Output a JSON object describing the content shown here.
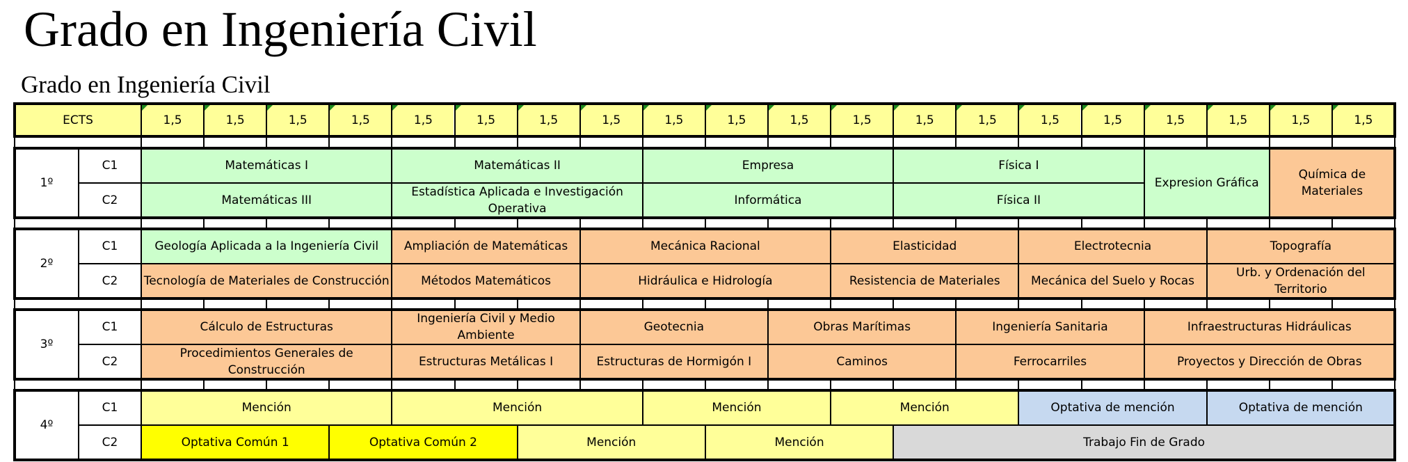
{
  "page_title": "Grado en Ingeniería Civil",
  "table_title": "Grado en Ingeniería Civil",
  "colors": {
    "header": "#ffff99",
    "basic": "#ccffcc",
    "specific": "#fcc896",
    "mention": "#ffff99",
    "common_optional": "#ffff00",
    "mention_optional": "#c6d9f0",
    "final_project": "#d9d9d9"
  },
  "header_label": "ECTS",
  "ects": [
    "1,5",
    "1,5",
    "1,5",
    "1,5",
    "1,5",
    "1,5",
    "1,5",
    "1,5",
    "1,5",
    "1,5",
    "1,5",
    "1,5",
    "1,5",
    "1,5",
    "1,5",
    "1,5",
    "1,5",
    "1,5",
    "1,5",
    "1,5"
  ],
  "years": [
    {
      "label": "1º",
      "rows": [
        {
          "term": "C1",
          "courses": [
            {
              "name": "Matemáticas I",
              "span": 4,
              "type": "basic"
            },
            {
              "name": "Matemáticas II",
              "span": 4,
              "type": "basic"
            },
            {
              "name": "Empresa",
              "span": 4,
              "type": "basic"
            },
            {
              "name": "Física I",
              "span": 4,
              "type": "basic"
            },
            {
              "name": "Expresion Gráfica",
              "span": 2,
              "type": "basic",
              "rowspan": 2
            },
            {
              "name": "Química de Materiales",
              "span": 2,
              "type": "specific",
              "rowspan": 2
            }
          ]
        },
        {
          "term": "C2",
          "courses": [
            {
              "name": "Matemáticas III",
              "span": 4,
              "type": "basic"
            },
            {
              "name": "Estadística Aplicada e Investigación Operativa",
              "span": 4,
              "type": "basic"
            },
            {
              "name": "Informática",
              "span": 4,
              "type": "basic"
            },
            {
              "name": "Física II",
              "span": 4,
              "type": "basic"
            }
          ]
        }
      ]
    },
    {
      "label": "2º",
      "rows": [
        {
          "term": "C1",
          "courses": [
            {
              "name": "Geología Aplicada a la Ingeniería Civil",
              "span": 4,
              "type": "basic"
            },
            {
              "name": "Ampliación de Matemáticas",
              "span": 3,
              "type": "specific"
            },
            {
              "name": "Mecánica Racional",
              "span": 4,
              "type": "specific"
            },
            {
              "name": "Elasticidad",
              "span": 3,
              "type": "specific"
            },
            {
              "name": "Electrotecnia",
              "span": 3,
              "type": "specific"
            },
            {
              "name": "Topografía",
              "span": 3,
              "type": "specific"
            }
          ]
        },
        {
          "term": "C2",
          "courses": [
            {
              "name": "Tecnología de Materiales de Construcción",
              "span": 4,
              "type": "specific"
            },
            {
              "name": "Métodos Matemáticos",
              "span": 3,
              "type": "specific"
            },
            {
              "name": "Hidráulica e Hidrología",
              "span": 4,
              "type": "specific"
            },
            {
              "name": "Resistencia de Materiales",
              "span": 3,
              "type": "specific"
            },
            {
              "name": "Mecánica del Suelo y Rocas",
              "span": 3,
              "type": "specific"
            },
            {
              "name": "Urb. y Ordenación del Territorio",
              "span": 3,
              "type": "specific"
            }
          ]
        }
      ]
    },
    {
      "label": "3º",
      "rows": [
        {
          "term": "C1",
          "courses": [
            {
              "name": "Cálculo de Estructuras",
              "span": 4,
              "type": "specific"
            },
            {
              "name": "Ingeniería Civil y Medio Ambiente",
              "span": 3,
              "type": "specific"
            },
            {
              "name": "Geotecnia",
              "span": 3,
              "type": "specific"
            },
            {
              "name": "Obras Marítimas",
              "span": 3,
              "type": "specific"
            },
            {
              "name": "Ingeniería Sanitaria",
              "span": 3,
              "type": "specific"
            },
            {
              "name": "Infraestructuras Hidráulicas",
              "span": 4,
              "type": "specific"
            }
          ]
        },
        {
          "term": "C2",
          "courses": [
            {
              "name": "Procedimientos Generales de Construcción",
              "span": 4,
              "type": "specific"
            },
            {
              "name": "Estructuras Metálicas I",
              "span": 3,
              "type": "specific"
            },
            {
              "name": "Estructuras de Hormigón I",
              "span": 3,
              "type": "specific"
            },
            {
              "name": "Caminos",
              "span": 3,
              "type": "specific"
            },
            {
              "name": "Ferrocarriles",
              "span": 3,
              "type": "specific"
            },
            {
              "name": "Proyectos y Dirección de Obras",
              "span": 4,
              "type": "specific"
            }
          ]
        }
      ]
    },
    {
      "label": "4º",
      "rows": [
        {
          "term": "C1",
          "courses": [
            {
              "name": "Mención",
              "span": 4,
              "type": "mention"
            },
            {
              "name": "Mención",
              "span": 4,
              "type": "mention"
            },
            {
              "name": "Mención",
              "span": 3,
              "type": "mention"
            },
            {
              "name": "Mención",
              "span": 3,
              "type": "mention"
            },
            {
              "name": "Optativa de mención",
              "span": 3,
              "type": "mention_optional"
            },
            {
              "name": "Optativa de mención",
              "span": 3,
              "type": "mention_optional"
            }
          ]
        },
        {
          "term": "C2",
          "courses": [
            {
              "name": "Optativa Común 1",
              "span": 3,
              "type": "common_optional"
            },
            {
              "name": "Optativa Común 2",
              "span": 3,
              "type": "common_optional"
            },
            {
              "name": "Mención",
              "span": 3,
              "type": "mention"
            },
            {
              "name": "Mención",
              "span": 3,
              "type": "mention"
            },
            {
              "name": "Trabajo Fin de Grado",
              "span": 8,
              "type": "final_project"
            }
          ]
        }
      ]
    }
  ]
}
